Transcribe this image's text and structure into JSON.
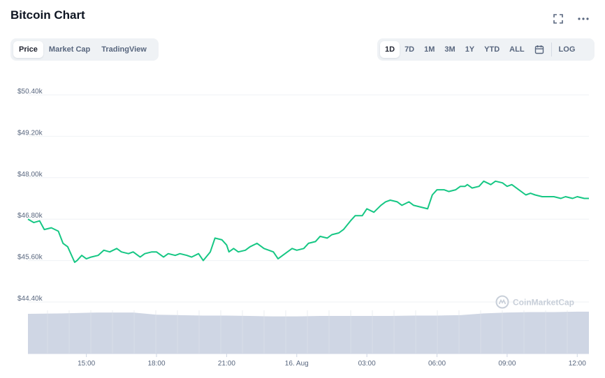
{
  "header": {
    "title": "Bitcoin Chart",
    "fullscreen_icon": "fullscreen-icon",
    "more_icon": "more-options-icon"
  },
  "chart_tabs": [
    {
      "label": "Price",
      "active": true
    },
    {
      "label": "Market Cap",
      "active": false
    },
    {
      "label": "TradingView",
      "active": false
    }
  ],
  "ranges": [
    {
      "label": "1D",
      "active": true
    },
    {
      "label": "7D",
      "active": false
    },
    {
      "label": "1M",
      "active": false
    },
    {
      "label": "3M",
      "active": false
    },
    {
      "label": "1Y",
      "active": false
    },
    {
      "label": "YTD",
      "active": false
    },
    {
      "label": "ALL",
      "active": false
    }
  ],
  "calendar_icon": "calendar-icon",
  "log_label": "LOG",
  "watermark": "CoinMarketCap",
  "colors": {
    "line": "#16c784",
    "volume": "#cfd6e4",
    "grid": "#eff2f5",
    "axis_text": "#58667e"
  },
  "chart_data": {
    "type": "line",
    "title": "Bitcoin Chart",
    "ylim": [
      44400,
      50400
    ],
    "y_ticks": [
      "$50.40k",
      "$49.20k",
      "$48.00k",
      "$46.80k",
      "$45.60k",
      "$44.40k"
    ],
    "y_tick_values": [
      50400,
      49200,
      48000,
      46800,
      45600,
      44400
    ],
    "x_ticks": [
      "15:00",
      "18:00",
      "21:00",
      "16. Aug",
      "03:00",
      "06:00",
      "09:00",
      "12:00"
    ],
    "x_tick_hours": [
      15,
      18,
      21,
      24,
      27,
      30,
      33,
      36
    ],
    "xlim_hours": [
      12.5,
      36.5
    ],
    "grid": true,
    "series": [
      {
        "type": "line",
        "x_hours": [
          12.5,
          12.75,
          13.0,
          13.2,
          13.5,
          13.8,
          14.0,
          14.2,
          14.5,
          14.6,
          14.8,
          15.0,
          15.2,
          15.5,
          15.75,
          16.0,
          16.3,
          16.5,
          16.8,
          17.0,
          17.3,
          17.5,
          17.8,
          18.0,
          18.3,
          18.5,
          18.8,
          19.0,
          19.3,
          19.5,
          19.8,
          20.0,
          20.3,
          20.5,
          20.8,
          21.0,
          21.1,
          21.3,
          21.5,
          21.8,
          22.0,
          22.3,
          22.6,
          23.0,
          23.2,
          23.5,
          23.8,
          24.0,
          24.3,
          24.5,
          24.8,
          25.0,
          25.3,
          25.5,
          25.8,
          26.0,
          26.3,
          26.5,
          26.8,
          27.0,
          27.3,
          27.6,
          27.8,
          28.0,
          28.3,
          28.5,
          28.8,
          29.0,
          29.3,
          29.6,
          29.8,
          30.0,
          30.3,
          30.5,
          30.8,
          31.0,
          31.2,
          31.3,
          31.5,
          31.8,
          32.0,
          32.3,
          32.5,
          32.8,
          33.0,
          33.2,
          33.5,
          33.8,
          34.0,
          34.2,
          34.5,
          34.8,
          35.0,
          35.3,
          35.5,
          35.8,
          36.0,
          36.3,
          36.5
        ],
        "values": [
          46800,
          46700,
          46750,
          46500,
          46550,
          46450,
          46100,
          46000,
          45550,
          45600,
          45750,
          45650,
          45700,
          45750,
          45900,
          45850,
          45950,
          45850,
          45800,
          45850,
          45700,
          45800,
          45850,
          45850,
          45700,
          45800,
          45750,
          45800,
          45750,
          45700,
          45800,
          45600,
          45850,
          46250,
          46200,
          46050,
          45850,
          45950,
          45850,
          45900,
          46000,
          46100,
          45950,
          45850,
          45650,
          45800,
          45950,
          45900,
          45950,
          46100,
          46150,
          46300,
          46250,
          46350,
          46400,
          46500,
          46750,
          46900,
          46900,
          47100,
          47000,
          47200,
          47300,
          47350,
          47300,
          47200,
          47300,
          47200,
          47150,
          47100,
          47500,
          47650,
          47650,
          47600,
          47650,
          47750,
          47750,
          47800,
          47700,
          47750,
          47900,
          47800,
          47900,
          47850,
          47750,
          47800,
          47650,
          47500,
          47550,
          47500,
          47450,
          47450,
          47450,
          47400,
          47450,
          47400,
          47450,
          47400,
          47400
        ]
      },
      {
        "type": "area",
        "name": "",
        "x_hours": [
          12.5,
          14.0,
          15.5,
          17.0,
          18.0,
          19.0,
          20.0,
          21.0,
          22.0,
          23.0,
          24.0,
          25.0,
          26.0,
          27.0,
          28.0,
          29.0,
          30.0,
          31.0,
          32.0,
          33.0,
          34.0,
          35.0,
          36.0,
          36.5
        ],
        "values": [
          0.92,
          0.93,
          0.95,
          0.95,
          0.9,
          0.89,
          0.88,
          0.88,
          0.87,
          0.86,
          0.86,
          0.87,
          0.87,
          0.87,
          0.87,
          0.88,
          0.88,
          0.89,
          0.93,
          0.95,
          0.96,
          0.96,
          0.97,
          0.97
        ]
      }
    ]
  }
}
